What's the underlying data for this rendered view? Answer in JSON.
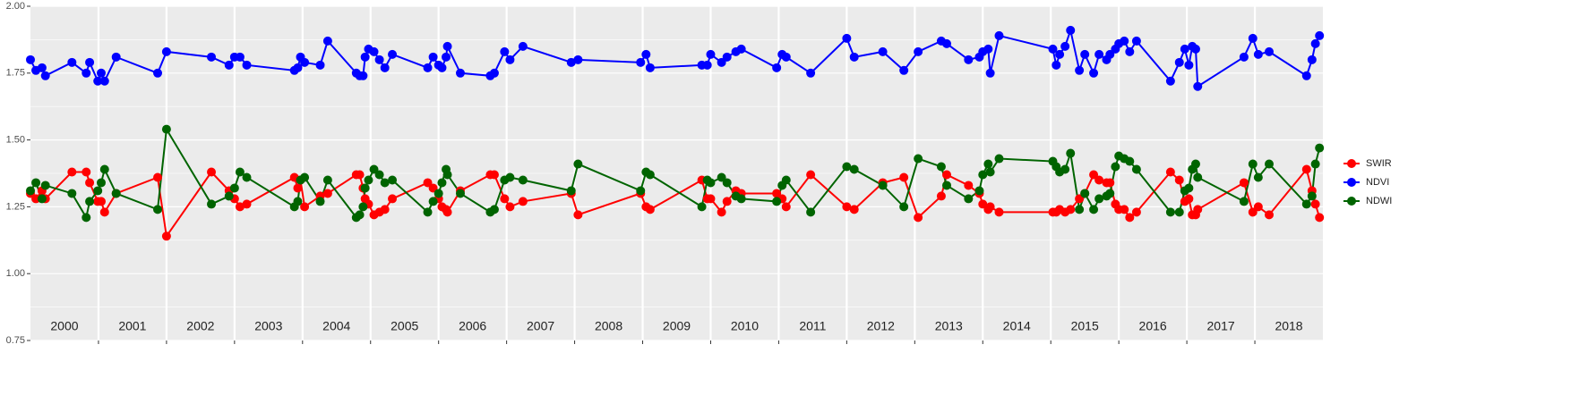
{
  "chart_data": {
    "type": "line",
    "x": [
      2000.0,
      2000.08,
      2000.17,
      2000.22,
      2000.61,
      2000.82,
      2000.87,
      2000.99,
      2001.04,
      2001.09,
      2001.26,
      2001.87,
      2002.0,
      2002.66,
      2002.92,
      2003.0,
      2003.08,
      2003.18,
      2003.88,
      2003.93,
      2003.97,
      2004.03,
      2004.26,
      2004.37,
      2004.79,
      2004.84,
      2004.89,
      2004.92,
      2004.97,
      2005.05,
      2005.13,
      2005.21,
      2005.32,
      2005.84,
      2005.92,
      2006.0,
      2006.05,
      2006.11,
      2006.13,
      2006.32,
      2006.76,
      2006.82,
      2006.97,
      2007.05,
      2007.24,
      2007.95,
      2008.05,
      2008.97,
      2009.05,
      2009.11,
      2009.87,
      2009.95,
      2010.0,
      2010.16,
      2010.24,
      2010.37,
      2010.45,
      2010.97,
      2011.05,
      2011.11,
      2011.47,
      2012.0,
      2012.11,
      2012.53,
      2012.84,
      2013.05,
      2013.39,
      2013.47,
      2013.79,
      2013.95,
      2014.0,
      2014.08,
      2014.11,
      2014.24,
      2015.03,
      2015.08,
      2015.13,
      2015.21,
      2015.29,
      2015.42,
      2015.5,
      2015.63,
      2015.71,
      2015.82,
      2015.87,
      2015.95,
      2016.0,
      2016.08,
      2016.16,
      2016.26,
      2016.76,
      2016.89,
      2016.97,
      2017.03,
      2017.08,
      2017.13,
      2017.16,
      2017.84,
      2017.97,
      2018.05,
      2018.21,
      2018.76,
      2018.84,
      2018.89,
      2018.95
    ],
    "series": [
      {
        "name": "SWIR",
        "color": "#ff0000",
        "values": [
          1.3,
          1.28,
          1.31,
          1.28,
          1.38,
          1.38,
          1.34,
          1.27,
          1.27,
          1.23,
          1.3,
          1.36,
          1.14,
          1.38,
          1.31,
          1.28,
          1.25,
          1.26,
          1.36,
          1.32,
          1.35,
          1.25,
          1.29,
          1.3,
          1.37,
          1.37,
          1.32,
          1.28,
          1.26,
          1.22,
          1.23,
          1.24,
          1.28,
          1.34,
          1.32,
          1.28,
          1.25,
          1.24,
          1.23,
          1.31,
          1.37,
          1.37,
          1.28,
          1.25,
          1.27,
          1.3,
          1.22,
          1.3,
          1.25,
          1.24,
          1.35,
          1.28,
          1.28,
          1.23,
          1.27,
          1.31,
          1.3,
          1.3,
          1.28,
          1.25,
          1.37,
          1.25,
          1.24,
          1.34,
          1.36,
          1.21,
          1.29,
          1.37,
          1.33,
          1.3,
          1.26,
          1.24,
          1.25,
          1.23,
          1.23,
          1.23,
          1.24,
          1.23,
          1.24,
          1.28,
          1.3,
          1.37,
          1.35,
          1.34,
          1.34,
          1.26,
          1.24,
          1.24,
          1.21,
          1.23,
          1.38,
          1.35,
          1.27,
          1.28,
          1.22,
          1.22,
          1.24,
          1.34,
          1.23,
          1.25,
          1.22,
          1.39,
          1.31,
          1.26,
          1.21
        ]
      },
      {
        "name": "NDVI",
        "color": "#0000ff",
        "values": [
          1.8,
          1.76,
          1.77,
          1.74,
          1.79,
          1.75,
          1.79,
          1.72,
          1.75,
          1.72,
          1.81,
          1.75,
          1.83,
          1.81,
          1.78,
          1.81,
          1.81,
          1.78,
          1.76,
          1.77,
          1.81,
          1.79,
          1.78,
          1.87,
          1.75,
          1.74,
          1.74,
          1.81,
          1.84,
          1.83,
          1.8,
          1.77,
          1.82,
          1.77,
          1.81,
          1.78,
          1.77,
          1.81,
          1.85,
          1.75,
          1.74,
          1.75,
          1.83,
          1.8,
          1.85,
          1.79,
          1.8,
          1.79,
          1.82,
          1.77,
          1.78,
          1.78,
          1.82,
          1.79,
          1.81,
          1.83,
          1.84,
          1.77,
          1.82,
          1.81,
          1.75,
          1.88,
          1.81,
          1.83,
          1.76,
          1.83,
          1.87,
          1.86,
          1.8,
          1.81,
          1.83,
          1.84,
          1.75,
          1.89,
          1.84,
          1.78,
          1.82,
          1.85,
          1.91,
          1.76,
          1.82,
          1.75,
          1.82,
          1.8,
          1.82,
          1.84,
          1.86,
          1.87,
          1.83,
          1.87,
          1.72,
          1.79,
          1.84,
          1.78,
          1.85,
          1.84,
          1.7,
          1.81,
          1.88,
          1.82,
          1.83,
          1.74,
          1.8,
          1.86,
          1.89
        ]
      },
      {
        "name": "NDWI",
        "color": "#006400",
        "values": [
          1.31,
          1.34,
          1.28,
          1.33,
          1.3,
          1.21,
          1.27,
          1.31,
          1.34,
          1.39,
          1.3,
          1.24,
          1.54,
          1.26,
          1.29,
          1.32,
          1.38,
          1.36,
          1.25,
          1.27,
          1.35,
          1.36,
          1.27,
          1.35,
          1.21,
          1.22,
          1.25,
          1.32,
          1.35,
          1.39,
          1.37,
          1.34,
          1.35,
          1.23,
          1.27,
          1.3,
          1.34,
          1.39,
          1.37,
          1.3,
          1.23,
          1.24,
          1.35,
          1.36,
          1.35,
          1.31,
          1.41,
          1.31,
          1.38,
          1.37,
          1.25,
          1.35,
          1.34,
          1.36,
          1.34,
          1.29,
          1.28,
          1.27,
          1.33,
          1.35,
          1.23,
          1.4,
          1.39,
          1.33,
          1.25,
          1.43,
          1.4,
          1.33,
          1.28,
          1.31,
          1.37,
          1.41,
          1.38,
          1.43,
          1.42,
          1.4,
          1.38,
          1.39,
          1.45,
          1.24,
          1.3,
          1.24,
          1.28,
          1.29,
          1.3,
          1.4,
          1.44,
          1.43,
          1.42,
          1.39,
          1.23,
          1.23,
          1.31,
          1.32,
          1.39,
          1.41,
          1.36,
          1.27,
          1.41,
          1.36,
          1.41,
          1.26,
          1.29,
          1.41,
          1.47
        ]
      }
    ],
    "xlim": [
      2000,
      2019
    ],
    "xticks": [
      2001,
      2002,
      2003,
      2004,
      2005,
      2006,
      2007,
      2008,
      2009,
      2010,
      2011,
      2012,
      2013,
      2014,
      2015,
      2016,
      2017,
      2018
    ],
    "year_labels": [
      "2000",
      "2001",
      "2002",
      "2003",
      "2004",
      "2005",
      "2006",
      "2007",
      "2008",
      "2009",
      "2010",
      "2011",
      "2012",
      "2013",
      "2014",
      "2015",
      "2016",
      "2017",
      "2018"
    ],
    "ylim": [
      0.75,
      2.0
    ],
    "yticks": [
      {
        "value": 0.75,
        "label": "0.75"
      },
      {
        "value": 1.0,
        "label": "1.00"
      },
      {
        "value": 1.25,
        "label": "1.25"
      },
      {
        "value": 1.5,
        "label": "1.50"
      },
      {
        "value": 1.75,
        "label": "1.75"
      },
      {
        "value": 2.0,
        "label": "2.00"
      }
    ],
    "grid": true,
    "legend": "right"
  }
}
